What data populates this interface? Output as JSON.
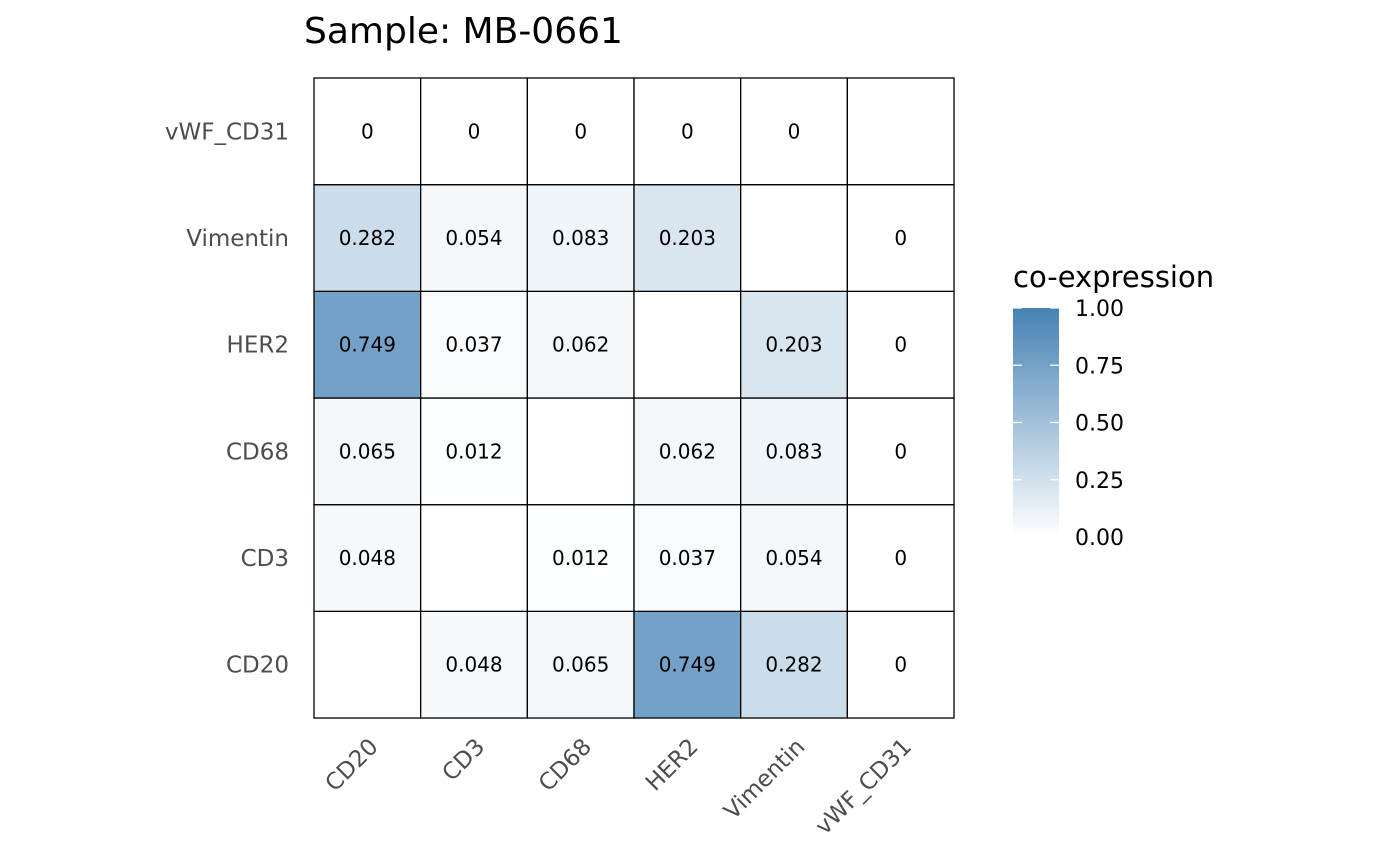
{
  "chart_data": {
    "type": "heatmap",
    "title": "Sample: MB-0661",
    "x_categories": [
      "CD20",
      "CD3",
      "CD68",
      "HER2",
      "Vimentin",
      "vWF_CD31"
    ],
    "y_categories": [
      "CD20",
      "CD3",
      "CD68",
      "HER2",
      "Vimentin",
      "vWF_CD31"
    ],
    "cells": [
      {
        "x": "CD3",
        "y": "CD20",
        "value": 0.048,
        "label": "0.048"
      },
      {
        "x": "CD68",
        "y": "CD20",
        "value": 0.065,
        "label": "0.065"
      },
      {
        "x": "HER2",
        "y": "CD20",
        "value": 0.749,
        "label": "0.749"
      },
      {
        "x": "Vimentin",
        "y": "CD20",
        "value": 0.282,
        "label": "0.282"
      },
      {
        "x": "vWF_CD31",
        "y": "CD20",
        "value": 0,
        "label": "0"
      },
      {
        "x": "CD20",
        "y": "CD3",
        "value": 0.048,
        "label": "0.048"
      },
      {
        "x": "CD68",
        "y": "CD3",
        "value": 0.012,
        "label": "0.012"
      },
      {
        "x": "HER2",
        "y": "CD3",
        "value": 0.037,
        "label": "0.037"
      },
      {
        "x": "Vimentin",
        "y": "CD3",
        "value": 0.054,
        "label": "0.054"
      },
      {
        "x": "vWF_CD31",
        "y": "CD3",
        "value": 0,
        "label": "0"
      },
      {
        "x": "CD20",
        "y": "CD68",
        "value": 0.065,
        "label": "0.065"
      },
      {
        "x": "CD3",
        "y": "CD68",
        "value": 0.012,
        "label": "0.012"
      },
      {
        "x": "HER2",
        "y": "CD68",
        "value": 0.062,
        "label": "0.062"
      },
      {
        "x": "Vimentin",
        "y": "CD68",
        "value": 0.083,
        "label": "0.083"
      },
      {
        "x": "vWF_CD31",
        "y": "CD68",
        "value": 0,
        "label": "0"
      },
      {
        "x": "CD20",
        "y": "HER2",
        "value": 0.749,
        "label": "0.749"
      },
      {
        "x": "CD3",
        "y": "HER2",
        "value": 0.037,
        "label": "0.037"
      },
      {
        "x": "CD68",
        "y": "HER2",
        "value": 0.062,
        "label": "0.062"
      },
      {
        "x": "Vimentin",
        "y": "HER2",
        "value": 0.203,
        "label": "0.203"
      },
      {
        "x": "vWF_CD31",
        "y": "HER2",
        "value": 0,
        "label": "0"
      },
      {
        "x": "CD20",
        "y": "Vimentin",
        "value": 0.282,
        "label": "0.282"
      },
      {
        "x": "CD3",
        "y": "Vimentin",
        "value": 0.054,
        "label": "0.054"
      },
      {
        "x": "CD68",
        "y": "Vimentin",
        "value": 0.083,
        "label": "0.083"
      },
      {
        "x": "HER2",
        "y": "Vimentin",
        "value": 0.203,
        "label": "0.203"
      },
      {
        "x": "vWF_CD31",
        "y": "Vimentin",
        "value": 0,
        "label": "0"
      },
      {
        "x": "CD20",
        "y": "vWF_CD31",
        "value": 0,
        "label": "0"
      },
      {
        "x": "CD3",
        "y": "vWF_CD31",
        "value": 0,
        "label": "0"
      },
      {
        "x": "CD68",
        "y": "vWF_CD31",
        "value": 0,
        "label": "0"
      },
      {
        "x": "HER2",
        "y": "vWF_CD31",
        "value": 0,
        "label": "0"
      },
      {
        "x": "Vimentin",
        "y": "vWF_CD31",
        "value": 0,
        "label": "0"
      }
    ],
    "legend": {
      "title": "co-expression",
      "min": 0,
      "max": 1,
      "ticks": [
        0,
        0.25,
        0.5,
        0.75,
        1
      ],
      "tick_labels": [
        "0.00",
        "0.25",
        "0.50",
        "0.75",
        "1.00"
      ],
      "low_color": "#ffffff",
      "high_color": "#4682b4",
      "placement": "right"
    },
    "grid": false
  }
}
